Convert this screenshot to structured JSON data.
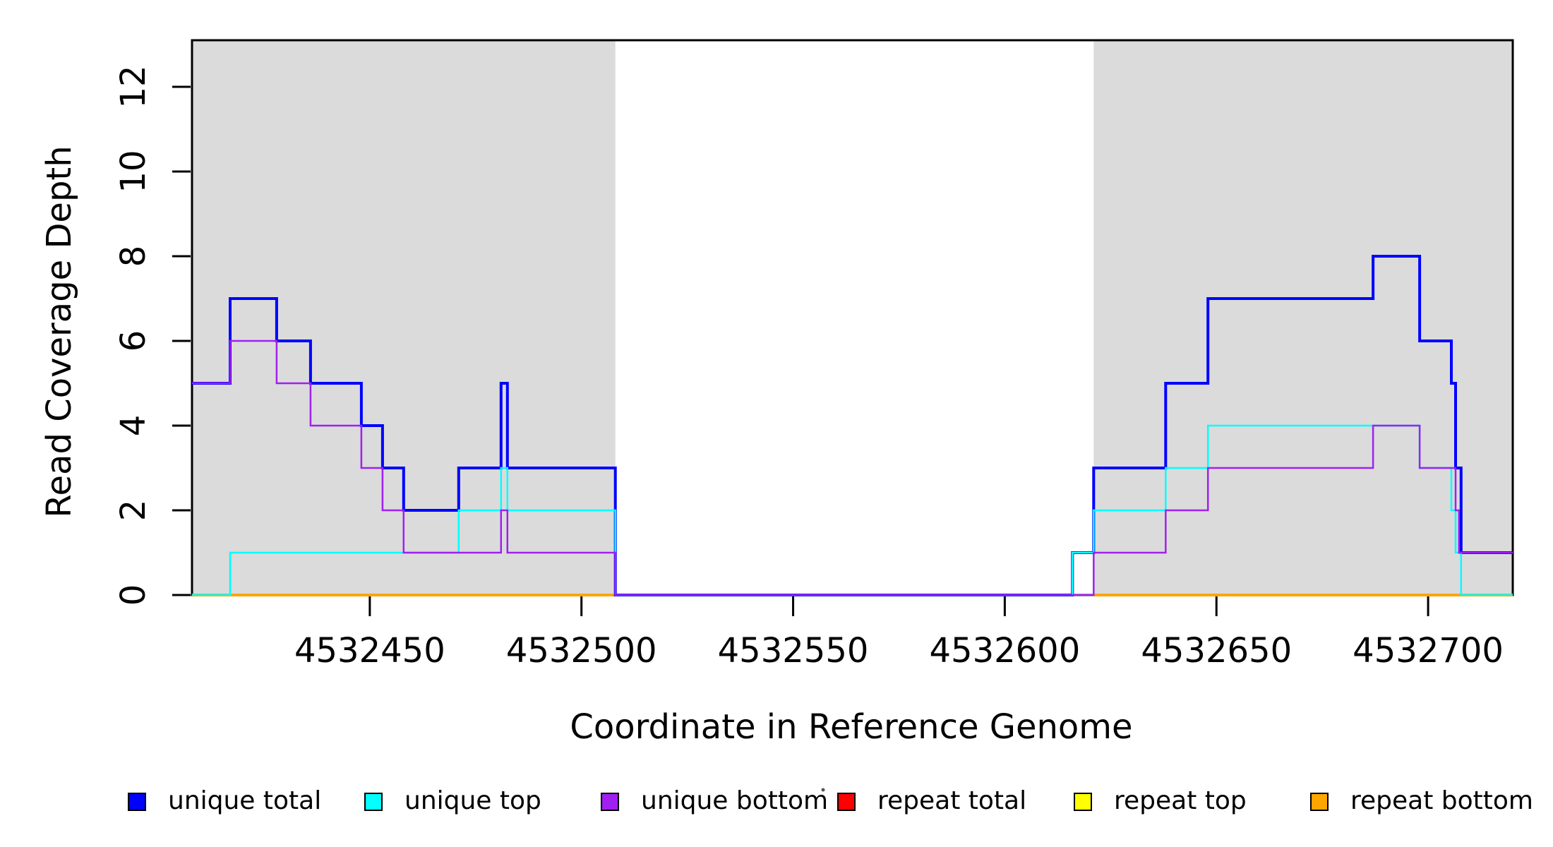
{
  "chart_data": {
    "type": "line",
    "subtype": "step-post",
    "title": "",
    "xlabel": "Coordinate in Reference Genome",
    "ylabel": "Read Coverage Depth",
    "xlim": [
      4532408,
      4532720
    ],
    "ylim": [
      0,
      13.1
    ],
    "xticks": [
      4532450,
      4532500,
      4532550,
      4532600,
      4532650,
      4532700
    ],
    "yticks": [
      0,
      2,
      4,
      6,
      8,
      10,
      12
    ],
    "grid": false,
    "legend_position": "bottom",
    "colors": {
      "shading": "#DBDBDB",
      "axis": "#000000",
      "background": "#FFFFFF"
    },
    "shaded_regions": [
      {
        "name": "left-gray-region",
        "x0": 4532408,
        "x1": 4532508
      },
      {
        "name": "right-gray-region",
        "x0": 4532621,
        "x1": 4532720
      }
    ],
    "series": [
      {
        "name": "unique total",
        "color": "#0000FF",
        "lwd": 4,
        "zorder": 2,
        "end": 4532720,
        "steps": [
          [
            4532408,
            5
          ],
          [
            4532417,
            7
          ],
          [
            4532428,
            6
          ],
          [
            4532436,
            5
          ],
          [
            4532448,
            4
          ],
          [
            4532453,
            3
          ],
          [
            4532458,
            2
          ],
          [
            4532471,
            3
          ],
          [
            4532481,
            5
          ],
          [
            4532482.5,
            3
          ],
          [
            4532508,
            0
          ],
          [
            4532616,
            1
          ],
          [
            4532621,
            3
          ],
          [
            4532638,
            5
          ],
          [
            4532648,
            7
          ],
          [
            4532687,
            8
          ],
          [
            4532698,
            6
          ],
          [
            4532705.5,
            5
          ],
          [
            4532706.5,
            3
          ],
          [
            4532707.8,
            1
          ]
        ]
      },
      {
        "name": "unique top",
        "color": "#00FFFF",
        "lwd": 2.5,
        "zorder": 3,
        "end": 4532720,
        "steps": [
          [
            4532408,
            0
          ],
          [
            4532417,
            1
          ],
          [
            4532471,
            2
          ],
          [
            4532481,
            3
          ],
          [
            4532482.5,
            2
          ],
          [
            4532508,
            0
          ],
          [
            4532616,
            1
          ],
          [
            4532621,
            2
          ],
          [
            4532638,
            3
          ],
          [
            4532648,
            4
          ],
          [
            4532698,
            3
          ],
          [
            4532705.5,
            2
          ],
          [
            4532706.5,
            1
          ],
          [
            4532707.8,
            0
          ]
        ]
      },
      {
        "name": "unique bottom",
        "color": "#A020F0",
        "lwd": 2.5,
        "zorder": 4,
        "end": 4532720,
        "steps": [
          [
            4532408,
            5
          ],
          [
            4532417,
            6
          ],
          [
            4532428,
            5
          ],
          [
            4532436,
            4
          ],
          [
            4532448,
            3
          ],
          [
            4532453,
            2
          ],
          [
            4532458,
            1
          ],
          [
            4532481,
            2
          ],
          [
            4532482.5,
            1
          ],
          [
            4532508,
            0
          ],
          [
            4532621,
            1
          ],
          [
            4532638,
            2
          ],
          [
            4532648,
            3
          ],
          [
            4532687,
            4
          ],
          [
            4532698,
            3
          ],
          [
            4532706.5,
            2
          ],
          [
            4532707.3,
            1
          ]
        ]
      },
      {
        "name": "repeat total",
        "color": "#FF0000",
        "lwd": 2.5,
        "zorder": 1,
        "flat_segments": [
          {
            "y": 0,
            "x0": 4532408,
            "x1": 4532508
          },
          {
            "y": 0,
            "x0": 4532621,
            "x1": 4532720
          }
        ]
      },
      {
        "name": "repeat top",
        "color": "#FFFF00",
        "lwd": 2.5,
        "zorder": 1,
        "flat_segments": [
          {
            "y": 0,
            "x0": 4532408,
            "x1": 4532508
          },
          {
            "y": 0,
            "x0": 4532621,
            "x1": 4532720
          }
        ]
      },
      {
        "name": "repeat bottom",
        "color": "#FFA500",
        "lwd": 4,
        "zorder": 1,
        "flat_segments": [
          {
            "y": 0,
            "x0": 4532408,
            "x1": 4532508
          },
          {
            "y": 0,
            "x0": 4532621,
            "x1": 4532720
          }
        ]
      }
    ],
    "legend": [
      {
        "label": "unique total",
        "color": "#0000FF"
      },
      {
        "label": "unique top",
        "color": "#00FFFF"
      },
      {
        "label": "unique bottom",
        "color": "#A020F0"
      },
      {
        "label": "repeat total",
        "color": "#FF0000"
      },
      {
        "label": "repeat top",
        "color": "#FFFF00"
      },
      {
        "label": "repeat bottom",
        "color": "#FFA500"
      }
    ]
  }
}
